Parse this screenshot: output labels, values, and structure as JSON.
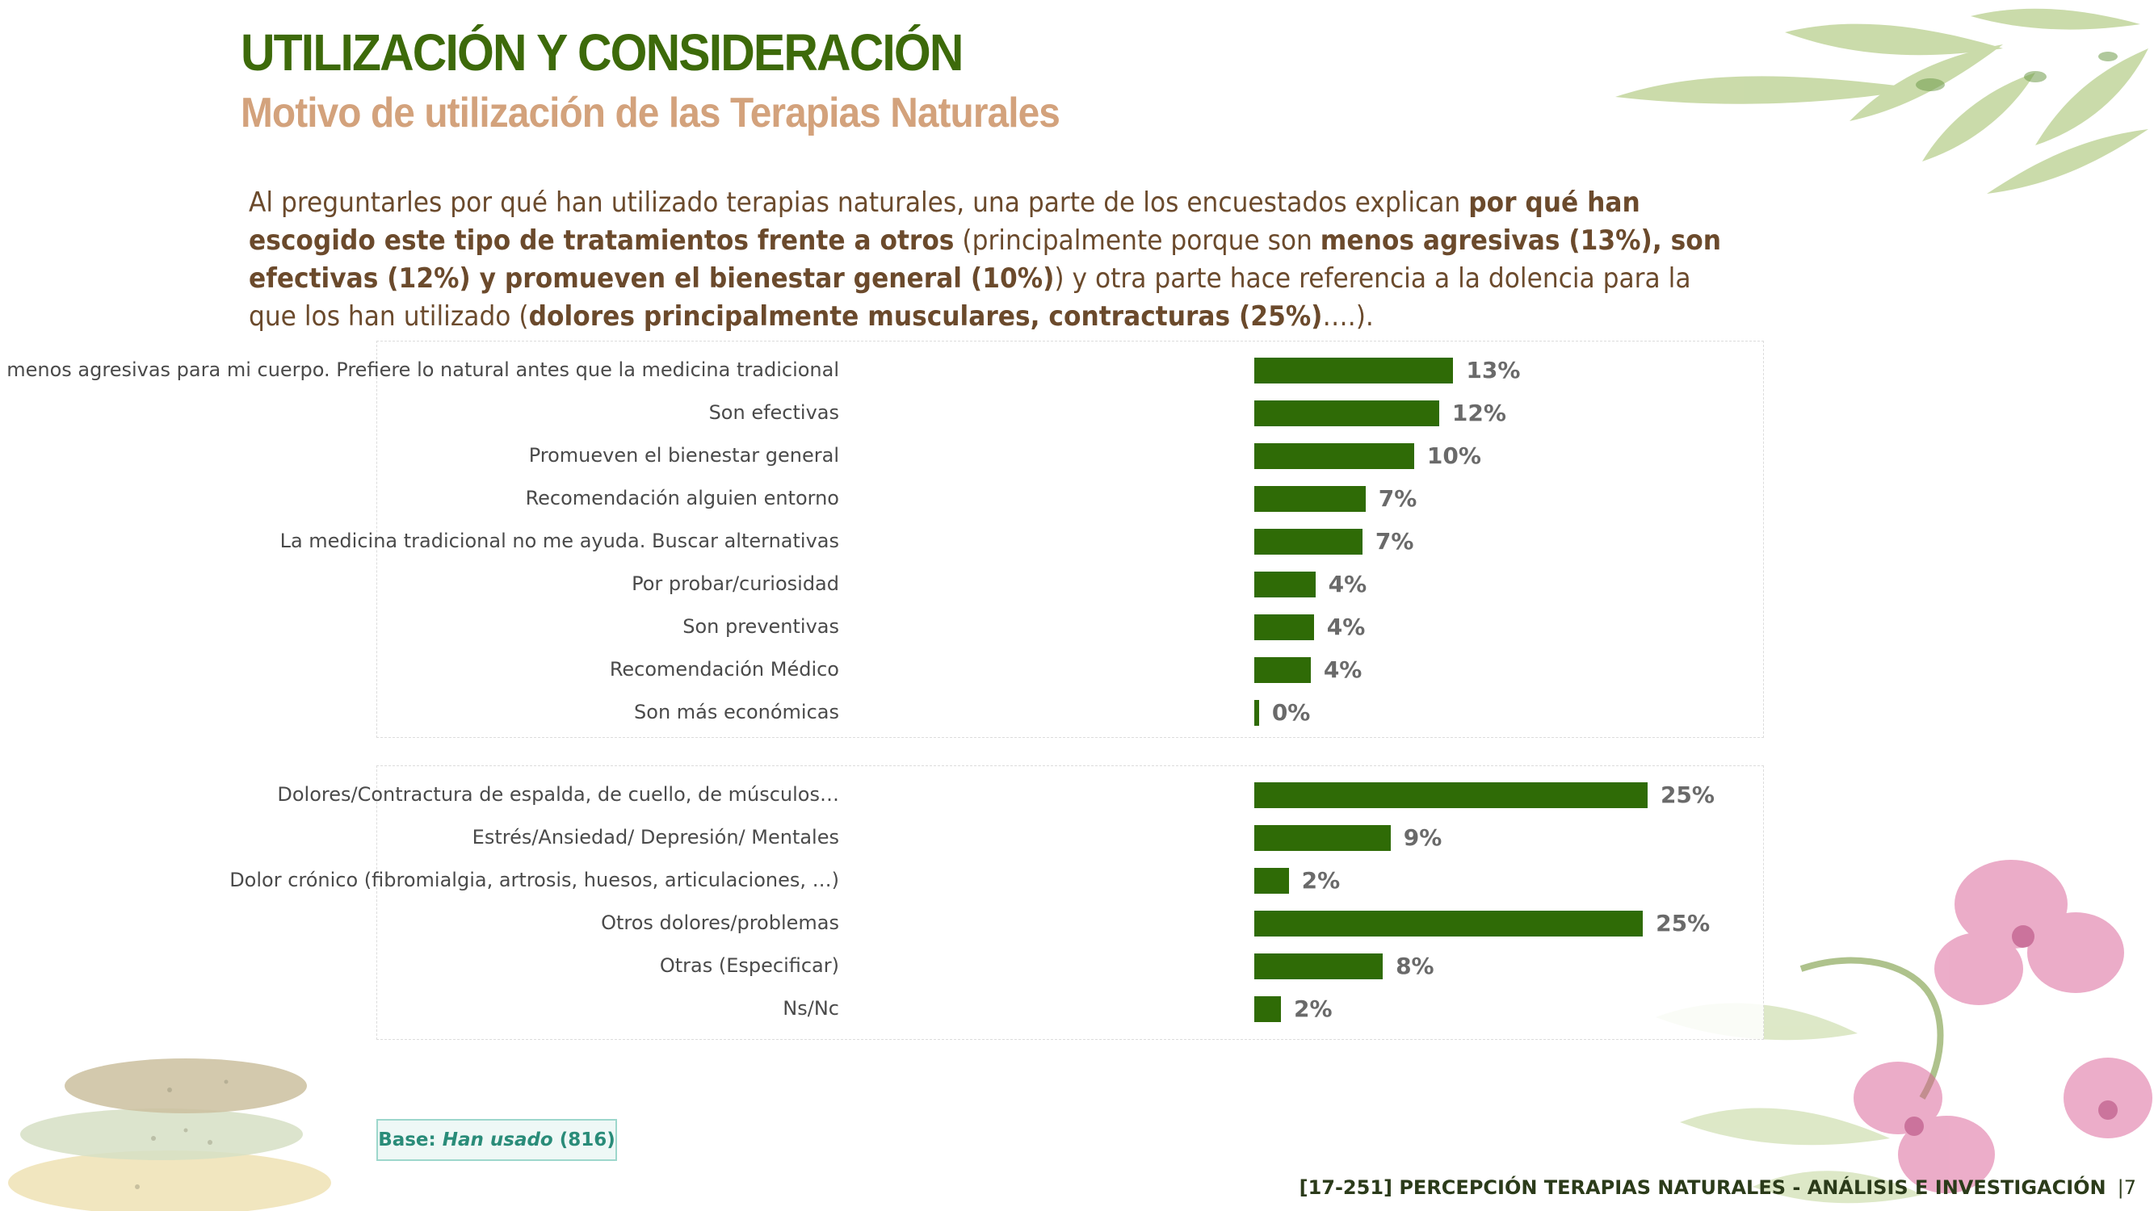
{
  "header": {
    "title": "UTILIZACIÓN Y CONSIDERACIÓN",
    "subtitle": "Motivo de utilización de las Terapias Naturales"
  },
  "intro": [
    {
      "text": "Al preguntarles por qué han utilizado terapias naturales, una parte de los encuestados explican ",
      "bold": false
    },
    {
      "text": "por qué han escogido este tipo de tratamientos frente a otros",
      "bold": true
    },
    {
      "text": " (principalmente porque son ",
      "bold": false
    },
    {
      "text": "menos agresivas (13%), son efectivas (12%) y promueven el bienestar general (10%)",
      "bold": true
    },
    {
      "text": ") y otra parte hace referencia a la dolencia para la que los han utilizado (",
      "bold": false
    },
    {
      "text": "dolores principalmente musculares, contracturas (25%)",
      "bold": true
    },
    {
      "text": "….).",
      "bold": false
    }
  ],
  "chart_data": [
    {
      "type": "bar",
      "orientation": "horizontal",
      "xlim": [
        0,
        30
      ],
      "grid": false,
      "bar_color": "#2f6b06",
      "categories": [
        "Son menos agresivas para mi cuerpo. Prefiere lo natural antes que la medicina tradicional",
        "Son efectivas",
        "Promueven el bienestar general",
        "Recomendación alguien entorno",
        "La medicina tradicional no me ayuda. Buscar alternativas",
        "Por probar/curiosidad",
        "Son preventivas",
        "Recomendación Médico",
        "Son más económicas"
      ],
      "values": [
        12.7,
        11.8,
        10.2,
        7.1,
        6.9,
        3.9,
        3.8,
        3.6,
        0.3
      ],
      "value_labels": [
        "13%",
        "12%",
        "10%",
        "7%",
        "7%",
        "4%",
        "4%",
        "4%",
        "0%"
      ]
    },
    {
      "type": "bar",
      "orientation": "horizontal",
      "xlim": [
        0,
        30
      ],
      "grid": false,
      "bar_color": "#2f6b06",
      "categories": [
        "Dolores/Contractura de espalda, de cuello, de músculos…",
        "Estrés/Ansiedad/ Depresión/ Mentales",
        "Dolor crónico (fibromialgia, artrosis, huesos, articulaciones, …)",
        "Otros dolores/problemas",
        "Otras (Especificar)",
        "Ns/Nc"
      ],
      "values": [
        25.1,
        8.7,
        2.2,
        24.8,
        8.2,
        1.7
      ],
      "value_labels": [
        "25%",
        "9%",
        "2%",
        "25%",
        "8%",
        "2%"
      ]
    }
  ],
  "base": {
    "prefix": "Base: ",
    "group": "Han usado",
    "count": " (816)"
  },
  "footer": {
    "text": "[17-251] PERCEPCIÓN TERAPIAS NATURALES - ANÁLISIS E INVESTIGACIÓN",
    "page": "|7"
  }
}
